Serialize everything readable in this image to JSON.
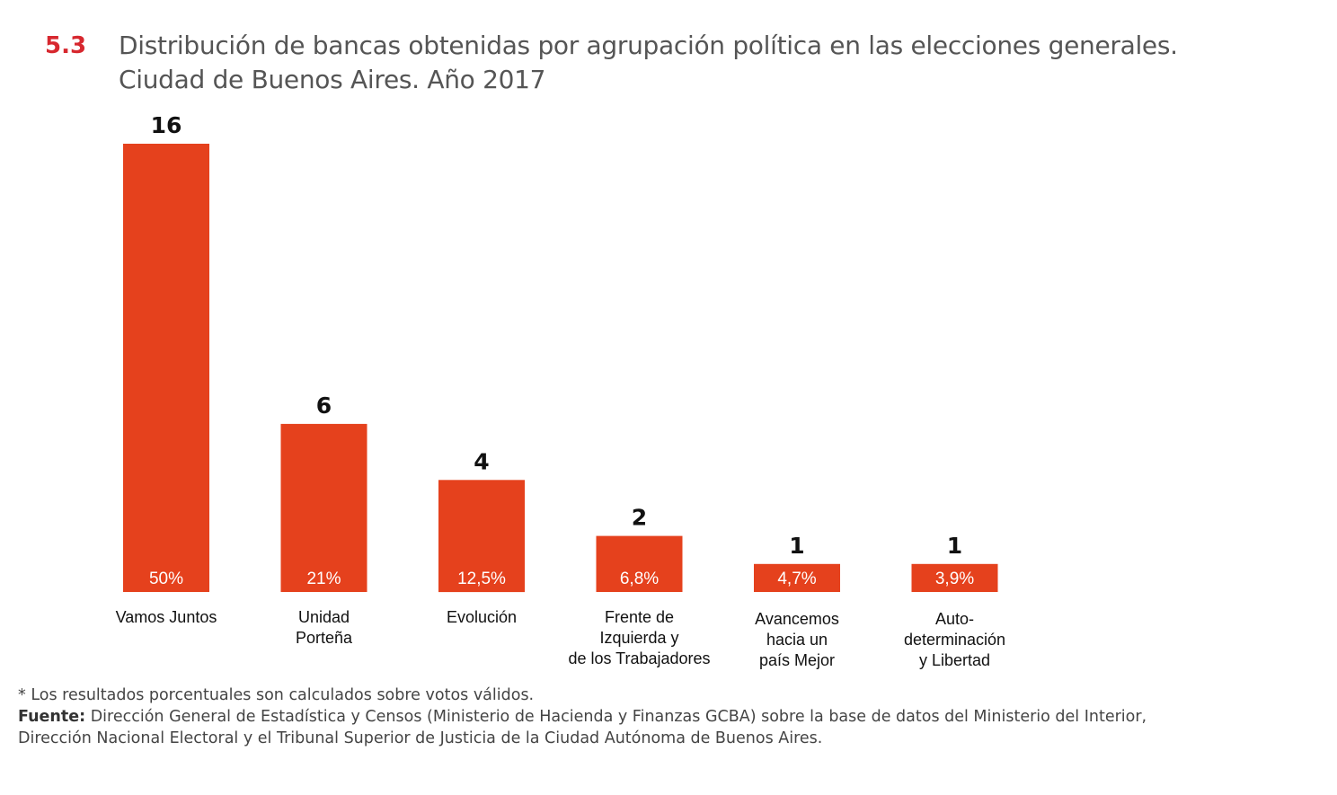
{
  "figure": {
    "number": "5.3",
    "title_line1": "Distribución de bancas obtenidas por agrupación política en las elecciones generales.",
    "title_line2": "Ciudad de Buenos Aires. Año 2017"
  },
  "colors": {
    "bar": "#e5411d",
    "accent": "#d7282f",
    "value_label": "#111111",
    "pct_label": "#ffffff",
    "category_label": "#111111"
  },
  "chart_data": {
    "type": "bar",
    "title": "Distribución de bancas obtenidas por agrupación política en las elecciones generales. Ciudad de Buenos Aires. Año 2017",
    "xlabel": "",
    "ylabel": "",
    "ylim": [
      0,
      16
    ],
    "categories": [
      [
        "Vamos Juntos"
      ],
      [
        "Unidad",
        "Porteña"
      ],
      [
        "Evolución"
      ],
      [
        "Frente de",
        "Izquierda y",
        "de los Trabajadores"
      ],
      [
        "Avancemos",
        "hacia un",
        "país Mejor"
      ],
      [
        "Auto-",
        "determinación",
        "y Libertad"
      ]
    ],
    "values": [
      16,
      6,
      4,
      2,
      1,
      1
    ],
    "value_labels": [
      "16",
      "6",
      "4",
      "2",
      "1",
      "1"
    ],
    "percent_labels": [
      "50%",
      "21%",
      "12,5%",
      "6,8%",
      "4,7%",
      "3,9%"
    ],
    "percent_values": [
      50,
      21,
      12.5,
      6.8,
      4.7,
      3.9
    ]
  },
  "notes": {
    "footnote": "* Los resultados porcentuales son calculados sobre votos válidos.",
    "source_label": "Fuente:",
    "source_line1": "Dirección General de Estadística y Censos (Ministerio de Hacienda y Finanzas GCBA) sobre la base de datos del Ministerio del Interior,",
    "source_line2": "Dirección Nacional Electoral y el Tribunal Superior de Justicia de la Ciudad Autónoma de Buenos Aires."
  }
}
